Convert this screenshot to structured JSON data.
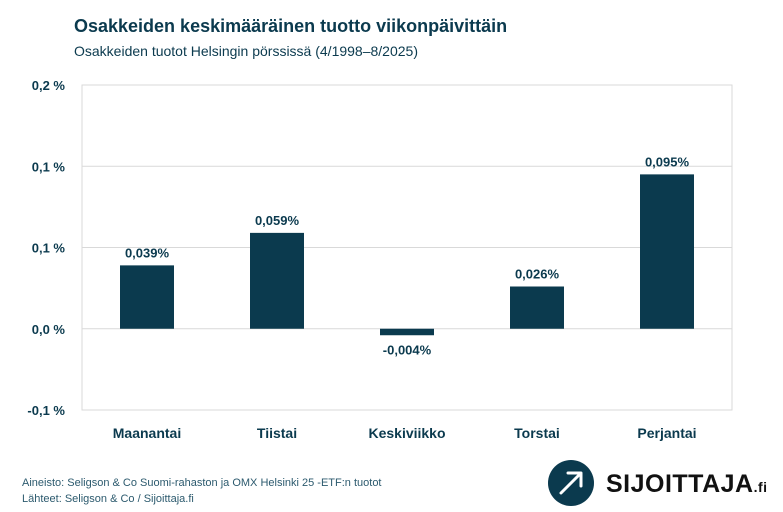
{
  "header": {
    "title": "Osakkeiden keskimääräinen tuotto viikonpäivittäin",
    "subtitle": "Osakkeiden tuotot Helsingin pörssissä (4/1998–8/2025)"
  },
  "footer": {
    "source_line": "Aineisto: Seligson & Co Suomi-rahaston ja OMX Helsinki 25 -ETF:n tuotot",
    "sources_line": "Lähteet: Seligson & Co / Sijoittaja.fi"
  },
  "logo": {
    "text": "SIJOITTAJA",
    "suffix": ".fi",
    "icon": "arrow-up-right-icon"
  },
  "chart_data": {
    "type": "bar",
    "title": "Osakkeiden keskimääräinen tuotto viikonpäivittäin",
    "subtitle": "Osakkeiden tuotot Helsingin pörssissä (4/1998–8/2025)",
    "categories": [
      "Maanantai",
      "Tiistai",
      "Keskiviikko",
      "Torstai",
      "Perjantai"
    ],
    "values": [
      0.039,
      0.059,
      -0.004,
      0.026,
      0.095
    ],
    "data_labels": [
      "0,039%",
      "0,059%",
      "-0,004%",
      "0,026%",
      "0,095%"
    ],
    "ytick_values": [
      -0.05,
      0,
      0.05,
      0.1,
      0.15
    ],
    "ytick_labels": [
      "-0,1 %",
      "0,0 %",
      "0,1 %",
      "0,1 %",
      "0,2 %"
    ],
    "ylim": [
      -0.05,
      0.15
    ],
    "grid": true,
    "bar_color": "#0b3a4e",
    "grid_color": "#d9d9d9"
  }
}
